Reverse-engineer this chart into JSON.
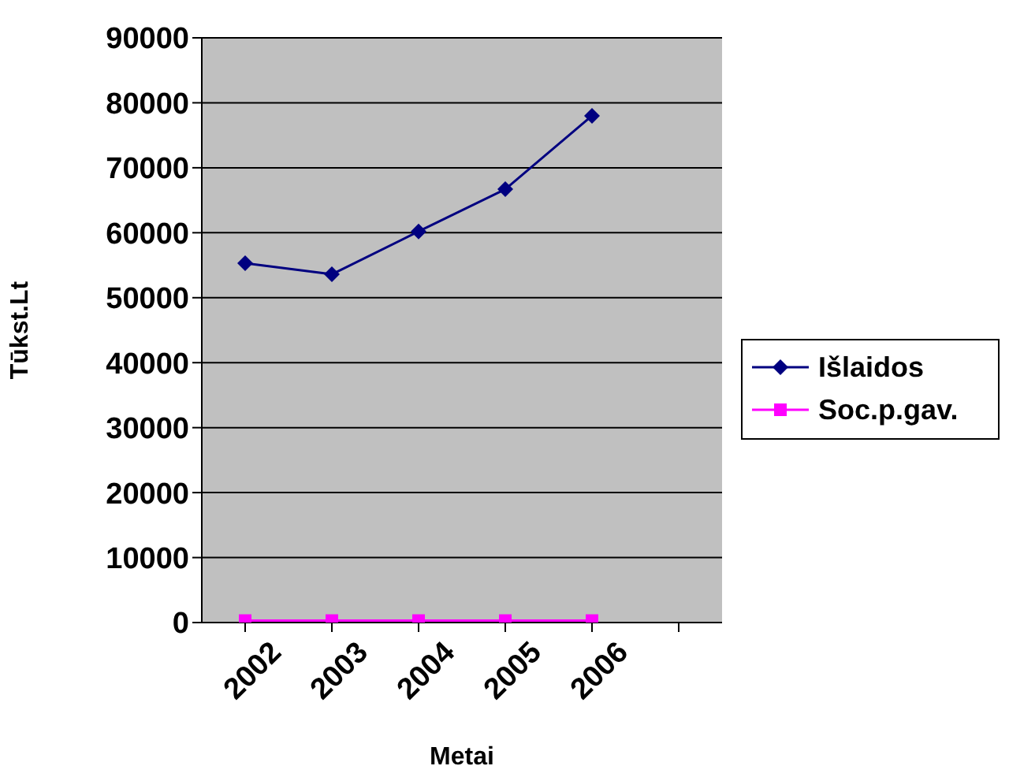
{
  "chart_data": {
    "type": "line",
    "xlabel": "Metai",
    "ylabel": "Tūkst.Lt",
    "categories": [
      "2002",
      "2003",
      "2004",
      "2005",
      "2006",
      null
    ],
    "series": [
      {
        "name": "Išlaidos",
        "color": "#000080",
        "marker": "diamond",
        "values": [
          55300,
          53600,
          60200,
          66700,
          78000,
          null
        ]
      },
      {
        "name": "Soc.p.gav.",
        "color": "#ff00ff",
        "marker": "square",
        "values": [
          300,
          300,
          300,
          300,
          300,
          null
        ]
      }
    ],
    "ylim": [
      0,
      90000
    ],
    "yticks": [
      0,
      10000,
      20000,
      30000,
      40000,
      50000,
      60000,
      70000,
      80000,
      90000
    ],
    "grid": "y",
    "legend": "right"
  }
}
